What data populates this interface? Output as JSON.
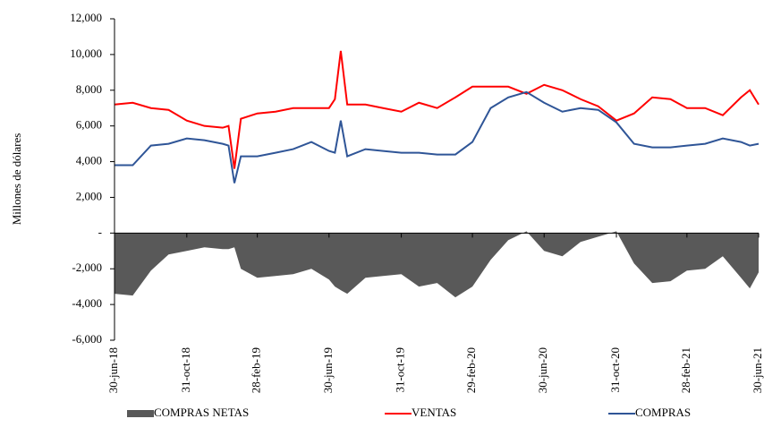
{
  "chart_data": {
    "type": "line",
    "y_label": "Millones de dólares",
    "x": [
      "2018-06-30",
      "2018-07-31",
      "2018-08-31",
      "2018-09-30",
      "2018-10-31",
      "2018-11-30",
      "2018-12-31",
      "2019-01-10",
      "2019-01-20",
      "2019-01-31",
      "2019-02-28",
      "2019-03-31",
      "2019-04-30",
      "2019-05-31",
      "2019-06-30",
      "2019-07-10",
      "2019-07-20",
      "2019-07-31",
      "2019-08-31",
      "2019-09-30",
      "2019-10-31",
      "2019-11-30",
      "2019-12-31",
      "2020-01-31",
      "2020-02-29",
      "2020-03-31",
      "2020-04-30",
      "2020-05-31",
      "2020-06-30",
      "2020-07-31",
      "2020-08-31",
      "2020-09-30",
      "2020-10-31",
      "2020-11-30",
      "2020-12-31",
      "2021-01-31",
      "2021-02-28",
      "2021-03-31",
      "2021-04-30",
      "2021-05-31",
      "2021-06-15",
      "2021-06-30"
    ],
    "series": [
      {
        "name": "COMPRAS NETAS",
        "color": "#595959",
        "style": "area",
        "values": [
          -3400,
          -3500,
          -2100,
          -1200,
          -1000,
          -800,
          -900,
          -900,
          -800,
          -2000,
          -2500,
          -2400,
          -2300,
          -2000,
          -2600,
          -3000,
          -3200,
          -3400,
          -2500,
          -2400,
          -2300,
          -3000,
          -2800,
          -3600,
          -3000,
          -1500,
          -400,
          100,
          -1000,
          -1300,
          -500,
          -200,
          100,
          -1700,
          -2800,
          -2700,
          -2100,
          -2000,
          -1300,
          -2500,
          -3100,
          -2200
        ]
      },
      {
        "name": "VENTAS",
        "color": "#ff0000",
        "style": "line",
        "values": [
          7200,
          7300,
          7000,
          6900,
          6300,
          6000,
          5900,
          6000,
          3600,
          6400,
          6700,
          6800,
          7000,
          7000,
          7000,
          7500,
          10200,
          7200,
          7200,
          7000,
          6800,
          7300,
          7000,
          7600,
          8200,
          8200,
          8200,
          7800,
          8300,
          8000,
          7500,
          7100,
          6300,
          6700,
          7600,
          7500,
          7000,
          7000,
          6600,
          7600,
          8000,
          7200
        ]
      },
      {
        "name": "COMPRAS",
        "color": "#2f5597",
        "style": "line",
        "values": [
          3800,
          3800,
          4900,
          5000,
          5300,
          5200,
          5000,
          4900,
          2800,
          4300,
          4300,
          4500,
          4700,
          5100,
          4600,
          4500,
          6300,
          4300,
          4700,
          4600,
          4500,
          4500,
          4400,
          4400,
          5100,
          7000,
          7600,
          7900,
          7300,
          6800,
          7000,
          6900,
          6200,
          5000,
          4800,
          4800,
          4900,
          5000,
          5300,
          5100,
          4900,
          5000
        ]
      }
    ],
    "xlim": [
      "2018-06-30",
      "2021-06-30"
    ],
    "xticks": [
      {
        "value": "2018-06-30",
        "label": "30-jun-18"
      },
      {
        "value": "2018-10-31",
        "label": "31-oct-18"
      },
      {
        "value": "2019-02-28",
        "label": "28-feb-19"
      },
      {
        "value": "2019-06-30",
        "label": "30-jun-19"
      },
      {
        "value": "2019-10-31",
        "label": "31-oct-19"
      },
      {
        "value": "2020-02-29",
        "label": "29-feb-20"
      },
      {
        "value": "2020-06-30",
        "label": "30-jun-20"
      },
      {
        "value": "2020-10-31",
        "label": "31-oct-20"
      },
      {
        "value": "2021-02-28",
        "label": "28-feb-21"
      },
      {
        "value": "2021-06-30",
        "label": "30-jun-21"
      }
    ],
    "ylim": [
      -6000,
      12000
    ],
    "yticks": [
      {
        "value": -6000,
        "label": "-6,000"
      },
      {
        "value": -4000,
        "label": "-4,000"
      },
      {
        "value": -2000,
        "label": "-2,000"
      },
      {
        "value": 0,
        "label": "-"
      },
      {
        "value": 2000,
        "label": "2,000"
      },
      {
        "value": 4000,
        "label": "4,000"
      },
      {
        "value": 6000,
        "label": "6,000"
      },
      {
        "value": 8000,
        "label": "8,000"
      },
      {
        "value": 10000,
        "label": "10,000"
      },
      {
        "value": 12000,
        "label": "12,000"
      }
    ],
    "legend": "bottom"
  }
}
